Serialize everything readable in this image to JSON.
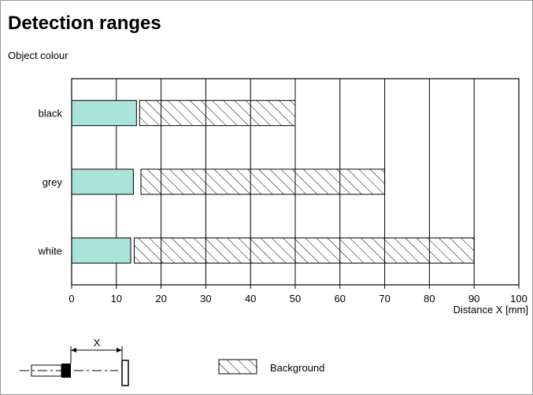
{
  "header": {
    "title": "Detection ranges",
    "subtitle": "Object colour"
  },
  "legend": {
    "background_label": "Background"
  },
  "diagram": {
    "distance_symbol": "X"
  },
  "colors": {
    "object_fill": "#a9e3da",
    "stroke": "#000000",
    "grid": "#000000"
  },
  "chart_data": {
    "type": "bar",
    "orientation": "horizontal",
    "title": "Detection ranges",
    "ylabel": "Object colour",
    "xlabel": "Distance X [mm]",
    "xlim": [
      0,
      100
    ],
    "x_ticks": [
      0,
      10,
      20,
      30,
      40,
      50,
      60,
      70,
      80,
      90,
      100
    ],
    "categories": [
      "black",
      "grey",
      "white"
    ],
    "series": [
      {
        "name": "",
        "style": "solid",
        "ranges": [
          [
            0,
            14.5
          ],
          [
            0,
            13.8
          ],
          [
            0,
            13.2
          ]
        ]
      },
      {
        "name": "Background",
        "style": "hatched",
        "ranges": [
          [
            15.2,
            50
          ],
          [
            15.5,
            70
          ],
          [
            14,
            90
          ]
        ]
      }
    ],
    "grid": "vertical",
    "legend_position": "bottom-center"
  }
}
